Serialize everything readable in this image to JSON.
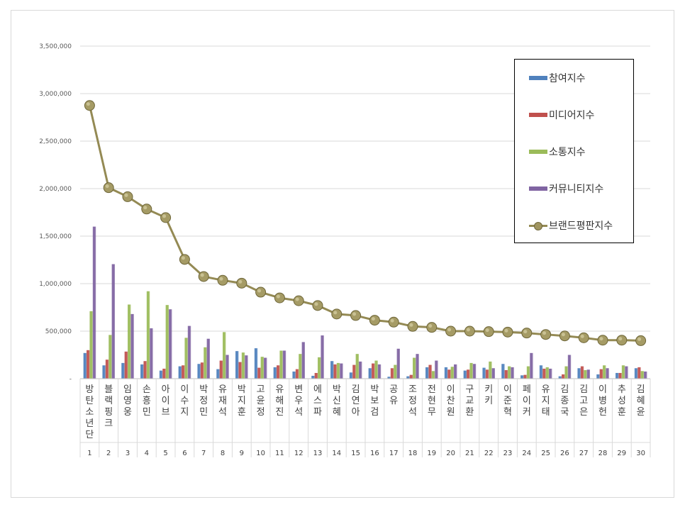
{
  "chart_data": {
    "type": "bar",
    "title": "",
    "xlabel": "",
    "ylabel": "",
    "ylim": [
      0,
      3500000
    ],
    "yticks": [
      0,
      500000,
      1000000,
      1500000,
      2000000,
      2500000,
      3000000,
      3500000
    ],
    "ytick_labels": [
      "-",
      "500,000",
      "1,000,000",
      "1,500,000",
      "2,000,000",
      "2,500,000",
      "3,000,000",
      "3,500,000"
    ],
    "grid": true,
    "legend_position": "top-right",
    "categories": [
      "방탄소년단",
      "블랙핑크",
      "임영웅",
      "손흥민",
      "아이브",
      "이수지",
      "박정민",
      "유재석",
      "박지훈",
      "고윤정",
      "유해진",
      "변우석",
      "에스파",
      "박신혜",
      "김연아",
      "박보검",
      "공유",
      "조정석",
      "전현무",
      "이찬원",
      "구교환",
      "키키",
      "이준혁",
      "페이커",
      "유지태",
      "김종국",
      "김고은",
      "이병헌",
      "추성훈",
      "김혜윤"
    ],
    "ranks": [
      "1",
      "2",
      "3",
      "4",
      "5",
      "6",
      "7",
      "8",
      "9",
      "10",
      "11",
      "12",
      "13",
      "14",
      "15",
      "16",
      "17",
      "18",
      "19",
      "20",
      "21",
      "22",
      "23",
      "24",
      "25",
      "26",
      "27",
      "28",
      "29",
      "30"
    ],
    "series": [
      {
        "name": "참여지수",
        "color": "#4f81bd",
        "kind": "bar",
        "values": [
          270000,
          140000,
          165000,
          150000,
          85000,
          130000,
          155000,
          100000,
          290000,
          320000,
          120000,
          75000,
          30000,
          185000,
          65000,
          110000,
          20000,
          25000,
          120000,
          120000,
          85000,
          115000,
          155000,
          35000,
          140000,
          25000,
          110000,
          45000,
          60000,
          110000
        ]
      },
      {
        "name": "미디어지수",
        "color": "#c0504d",
        "kind": "bar",
        "values": [
          300000,
          200000,
          285000,
          185000,
          105000,
          140000,
          170000,
          190000,
          175000,
          115000,
          140000,
          100000,
          60000,
          150000,
          145000,
          160000,
          110000,
          40000,
          145000,
          95000,
          95000,
          95000,
          90000,
          40000,
          105000,
          45000,
          130000,
          100000,
          60000,
          120000
        ]
      },
      {
        "name": "소통지수",
        "color": "#9bbb59",
        "kind": "bar",
        "values": [
          710000,
          460000,
          780000,
          920000,
          775000,
          430000,
          330000,
          490000,
          275000,
          230000,
          295000,
          260000,
          225000,
          165000,
          260000,
          190000,
          145000,
          220000,
          80000,
          125000,
          165000,
          180000,
          130000,
          130000,
          120000,
          130000,
          90000,
          140000,
          140000,
          80000
        ]
      },
      {
        "name": "커뮤니티지수",
        "color": "#8064a2",
        "kind": "bar",
        "values": [
          1600000,
          1205000,
          680000,
          530000,
          730000,
          555000,
          420000,
          250000,
          245000,
          220000,
          295000,
          385000,
          455000,
          160000,
          180000,
          150000,
          315000,
          260000,
          190000,
          150000,
          155000,
          110000,
          120000,
          270000,
          105000,
          250000,
          95000,
          110000,
          130000,
          75000
        ]
      },
      {
        "name": "브랜드평판지수",
        "color": "#948a54",
        "kind": "line",
        "values": [
          2875000,
          2010000,
          1915000,
          1785000,
          1695000,
          1255000,
          1075000,
          1035000,
          1005000,
          910000,
          850000,
          820000,
          770000,
          680000,
          665000,
          615000,
          595000,
          550000,
          540000,
          500000,
          500000,
          495000,
          490000,
          480000,
          465000,
          450000,
          430000,
          405000,
          405000,
          400000
        ]
      }
    ]
  }
}
